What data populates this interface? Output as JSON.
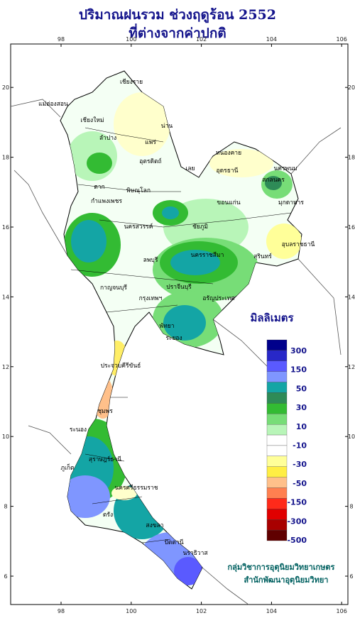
{
  "header": {
    "title": "ปริมาณฝนรวม ช่วงฤดูร้อน 2552",
    "subtitle": "ที่ต่างจากค่าปกติ"
  },
  "axes": {
    "lon_ticks": [
      98,
      100,
      102,
      104,
      106
    ],
    "lat_ticks": [
      6,
      8,
      10,
      12,
      14,
      16,
      18,
      20
    ]
  },
  "legend": {
    "title": "มิลลิเมตร",
    "colors": [
      "#00008b",
      "#2828c8",
      "#5a5aff",
      "#7f96ff",
      "#14a5a5",
      "#2e8b57",
      "#33bb33",
      "#77dd77",
      "#b8f5b8",
      "#ffffff",
      "#ffffff",
      "#ffff99",
      "#ffee44",
      "#ffc08a",
      "#ff8050",
      "#ff2a1a",
      "#e00000",
      "#a80000",
      "#600000"
    ],
    "labels": [
      "300",
      "150",
      "50",
      "30",
      "10",
      "-10",
      "-30",
      "-50",
      "-150",
      "-300",
      "-500"
    ]
  },
  "places": [
    "เชียงราย",
    "น่าน",
    "เชียงใหม่",
    "แม่ฮ่องสอน",
    "ลำปาง",
    "แพร่",
    "อุตรดิตถ์",
    "หนองคาย",
    "นครพนม",
    "สกลนคร",
    "มุกดาหาร",
    "ตาก",
    "พิษณุโลก",
    "เลย",
    "อุดรธานี",
    "ขอนแก่น",
    "กำแพงเพชร",
    "นครสวรรค์",
    "ชัยภูมิ",
    "อุบลราชธานี",
    "นครราชสีมา",
    "สุรินทร์",
    "ลพบุรี",
    "กาญจนบุรี",
    "กรุงเทพฯ",
    "ปราจีนบุรี",
    "อรัญประเทศ",
    "พัทยา",
    "ระยอง",
    "ประจวบคีรีขันธ์",
    "ชุมพร",
    "ระนอง",
    "สุราษฎร์ธานี",
    "ภูเก็ต",
    "นครศรีธรรมราช",
    "ตรัง",
    "สงขลา",
    "ปัตตานี",
    "นราธิวาส"
  ],
  "credits": [
    "กลุ่มวิชาการอุตุนิยมวิทยาเกษตร",
    "สำนักพัฒนาอุตุนิยมวิทยา"
  ]
}
